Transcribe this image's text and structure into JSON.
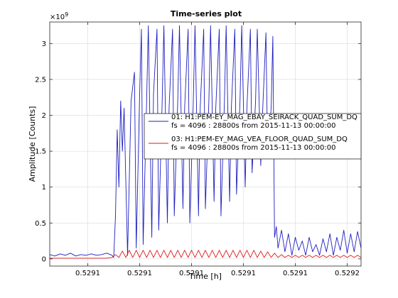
{
  "chart_data": {
    "type": "line",
    "title": "Time-series plot",
    "xlabel": "Time [h]",
    "ylabel": "Amplitude [Counts]",
    "y_exponent_label": "×10",
    "y_exponent_power": "9",
    "grid": true,
    "legend_position": "center-right",
    "xlim": [
      0.529038,
      0.529218
    ],
    "ylim": [
      -0.1,
      3.3
    ],
    "x_ticks": [
      0.52906,
      0.52909,
      0.52912,
      0.52915,
      0.52918,
      0.52921
    ],
    "x_tick_labels": [
      "0.5291",
      "0.5291",
      "0.5291",
      "0.5291",
      "0.5291",
      "0.5292"
    ],
    "y_ticks": [
      0,
      0.5,
      1,
      1.5,
      2,
      2.5,
      3
    ],
    "y_tick_labels": [
      "0",
      "0.5",
      "1",
      "1.5",
      "2",
      "2.5",
      "3"
    ],
    "series": [
      {
        "legend_line1": "01: H1:PEM-EY_MAG_EBAY_SEIRACK_QUAD_SUM_DQ",
        "legend_line2": "fs = 4096 : 28800s from 2015-11-13 00:00:00",
        "color": "#1f1fbf",
        "x": [
          0.529038,
          0.529041,
          0.529044,
          0.529047,
          0.52905,
          0.529053,
          0.529056,
          0.529059,
          0.529062,
          0.529065,
          0.529068,
          0.529071,
          0.529074,
          0.529075,
          0.529076,
          0.529077,
          0.529078,
          0.529079,
          0.52908,
          0.529081,
          0.529083,
          0.529085,
          0.529087,
          0.529088,
          0.52909,
          0.529091,
          0.529092,
          0.529094,
          0.529095,
          0.529097,
          0.529098,
          0.5291,
          0.529101,
          0.529103,
          0.529104,
          0.529106,
          0.529107,
          0.529109,
          0.52911,
          0.529112,
          0.529113,
          0.529115,
          0.529116,
          0.529118,
          0.529119,
          0.529121,
          0.529122,
          0.529124,
          0.529125,
          0.529127,
          0.529128,
          0.52913,
          0.529131,
          0.529133,
          0.529134,
          0.529136,
          0.529137,
          0.529139,
          0.52914,
          0.529142,
          0.529143,
          0.529145,
          0.529146,
          0.529148,
          0.529149,
          0.529151,
          0.529152,
          0.529154,
          0.529155,
          0.529157,
          0.529158,
          0.52916,
          0.529161,
          0.529163,
          0.529164,
          0.529166,
          0.529167,
          0.529168,
          0.529169,
          0.52917,
          0.529172,
          0.529174,
          0.529176,
          0.529178,
          0.52918,
          0.529182,
          0.529184,
          0.529186,
          0.529188,
          0.52919,
          0.529192,
          0.529194,
          0.529196,
          0.529198,
          0.5292,
          0.529202,
          0.529204,
          0.529206,
          0.529208,
          0.52921,
          0.529212,
          0.529214,
          0.529216,
          0.529218
        ],
        "y": [
          0.06,
          0.04,
          0.07,
          0.05,
          0.08,
          0.04,
          0.06,
          0.05,
          0.07,
          0.05,
          0.06,
          0.08,
          0.05,
          0.02,
          0.6,
          1.8,
          1.0,
          2.2,
          1.5,
          2.1,
          0.05,
          2.2,
          2.6,
          0.15,
          2.3,
          3.2,
          0.2,
          2.2,
          3.25,
          0.3,
          2.3,
          3.2,
          0.4,
          2.2,
          3.25,
          0.5,
          2.1,
          3.2,
          0.6,
          2.2,
          3.25,
          0.7,
          2.1,
          3.2,
          0.5,
          2.2,
          3.25,
          0.6,
          2.1,
          3.2,
          0.7,
          2.2,
          3.25,
          0.8,
          2.1,
          3.2,
          0.6,
          2.2,
          3.25,
          0.8,
          2.1,
          3.2,
          0.9,
          2.2,
          3.25,
          1.0,
          2.1,
          3.2,
          1.2,
          2.2,
          3.2,
          1.3,
          2.0,
          3.15,
          1.4,
          2.1,
          3.1,
          0.3,
          0.45,
          0.15,
          0.4,
          0.1,
          0.35,
          0.05,
          0.3,
          0.12,
          0.25,
          0.05,
          0.3,
          0.1,
          0.2,
          0.05,
          0.28,
          0.1,
          0.35,
          0.05,
          0.3,
          0.12,
          0.4,
          0.08,
          0.35,
          0.1,
          0.38,
          0.15
        ]
      },
      {
        "legend_line1": "03: H1:PEM-EY_MAG_VEA_FLOOR_QUAD_SUM_DQ",
        "legend_line2": "fs = 4096 : 28800s from 2015-11-13 00:00:00",
        "color": "#e01a1a",
        "x": [
          0.529038,
          0.52905,
          0.529062,
          0.52907,
          0.529074,
          0.529076,
          0.529078,
          0.52908,
          0.529082,
          0.529084,
          0.529086,
          0.529088,
          0.52909,
          0.529092,
          0.529094,
          0.529096,
          0.529098,
          0.5291,
          0.529102,
          0.529104,
          0.529106,
          0.529108,
          0.52911,
          0.529112,
          0.529114,
          0.529116,
          0.529118,
          0.52912,
          0.529122,
          0.529124,
          0.529126,
          0.529128,
          0.52913,
          0.529132,
          0.529134,
          0.529136,
          0.529138,
          0.52914,
          0.529142,
          0.529144,
          0.529146,
          0.529148,
          0.52915,
          0.529152,
          0.529154,
          0.529156,
          0.529158,
          0.52916,
          0.529162,
          0.529164,
          0.529166,
          0.529168,
          0.52917,
          0.529172,
          0.529174,
          0.529176,
          0.529178,
          0.52918,
          0.529182,
          0.529184,
          0.529186,
          0.529188,
          0.52919,
          0.529192,
          0.529194,
          0.529196,
          0.529198,
          0.5292,
          0.529202,
          0.529204,
          0.529206,
          0.529208,
          0.52921,
          0.529212,
          0.529214,
          0.529216,
          0.529218
        ],
        "y": [
          0.01,
          0.01,
          0.01,
          0.01,
          0.02,
          0.06,
          0.02,
          0.11,
          0.02,
          0.12,
          0.02,
          0.12,
          0.02,
          0.12,
          0.02,
          0.12,
          0.02,
          0.12,
          0.02,
          0.12,
          0.02,
          0.12,
          0.02,
          0.12,
          0.02,
          0.12,
          0.02,
          0.12,
          0.02,
          0.12,
          0.02,
          0.12,
          0.02,
          0.12,
          0.02,
          0.12,
          0.02,
          0.12,
          0.02,
          0.12,
          0.02,
          0.12,
          0.02,
          0.12,
          0.02,
          0.12,
          0.02,
          0.11,
          0.02,
          0.1,
          0.02,
          0.08,
          0.02,
          0.06,
          0.02,
          0.05,
          0.02,
          0.05,
          0.02,
          0.05,
          0.02,
          0.05,
          0.02,
          0.05,
          0.02,
          0.05,
          0.02,
          0.05,
          0.02,
          0.05,
          0.02,
          0.05,
          0.02,
          0.05,
          0.02,
          0.05,
          0.02
        ]
      }
    ]
  }
}
